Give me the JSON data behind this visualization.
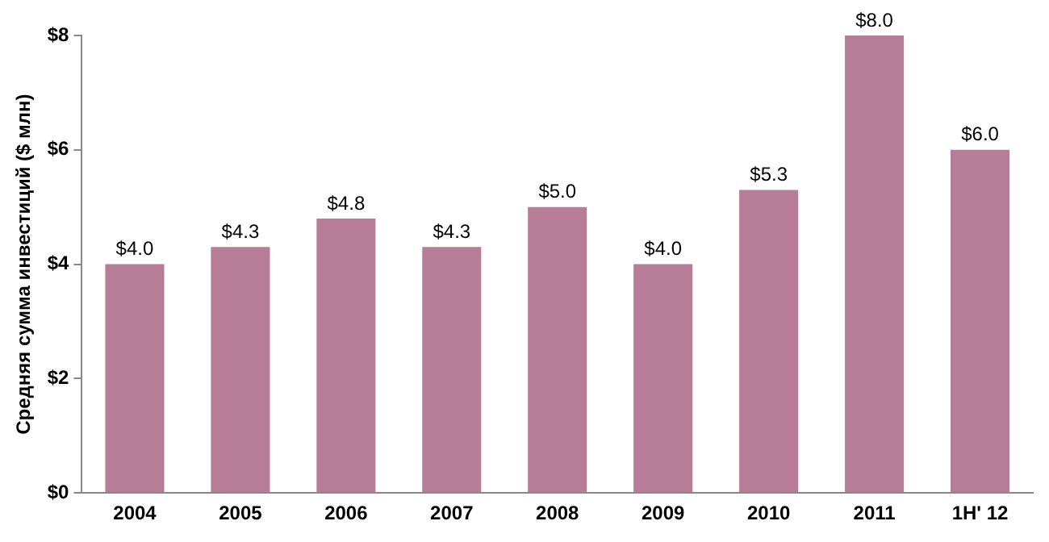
{
  "chart_data": {
    "type": "bar",
    "ylabel": "Средняя сумма инвестиций ($ млн)",
    "categories": [
      "2004",
      "2005",
      "2006",
      "2007",
      "2008",
      "2009",
      "2010",
      "2011",
      "1H' 12"
    ],
    "values": [
      4.0,
      4.3,
      4.8,
      4.3,
      5.0,
      4.0,
      5.3,
      8.0,
      6.0
    ],
    "value_labels": [
      "$4.0",
      "$4.3",
      "$4.8",
      "$4.3",
      "$5.0",
      "$4.0",
      "$5.3",
      "$8.0",
      "$6.0"
    ],
    "color": "#b77d96",
    "ylim": [
      0,
      8
    ],
    "yticks": [
      {
        "value": 0,
        "label": "$0"
      },
      {
        "value": 2,
        "label": "$2"
      },
      {
        "value": 4,
        "label": "$4"
      },
      {
        "value": 6,
        "label": "$6"
      },
      {
        "value": 8,
        "label": "$8"
      }
    ],
    "grid": false,
    "legend": false
  }
}
